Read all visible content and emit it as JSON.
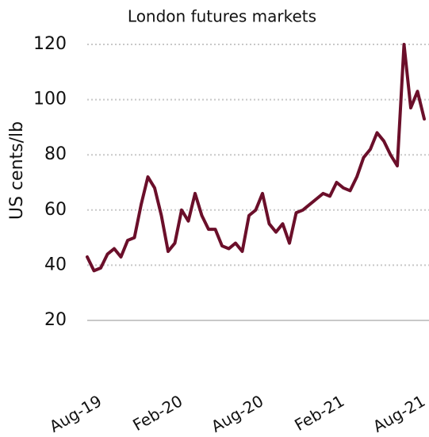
{
  "chart_data": {
    "type": "line",
    "title": "London futures markets",
    "y_label": "US cents/lb",
    "categories": [
      null,
      null,
      "Aug-19",
      null,
      null,
      null,
      null,
      null,
      null,
      null,
      null,
      null,
      null,
      null,
      "Feb-20",
      null,
      null,
      null,
      null,
      null,
      null,
      null,
      null,
      null,
      null,
      null,
      "Aug-20",
      null,
      null,
      null,
      null,
      null,
      null,
      null,
      null,
      null,
      null,
      null,
      "Feb-21",
      null,
      null,
      null,
      null,
      null,
      null,
      null,
      null,
      null,
      null,
      null,
      "Aug-21"
    ],
    "series": [
      {
        "name": "London futures",
        "color": "#6b0f2a",
        "values": [
          43,
          38,
          39,
          44,
          46,
          43,
          49,
          50,
          62,
          72,
          68,
          58,
          45,
          48,
          60,
          56,
          66,
          58,
          53,
          53,
          47,
          46,
          48,
          45,
          58,
          60,
          66,
          55,
          52,
          55,
          48,
          59,
          60,
          62,
          64,
          66,
          65,
          70,
          68,
          67,
          72,
          79,
          82,
          88,
          85,
          80,
          76,
          120,
          97,
          103,
          93
        ]
      }
    ],
    "ylim": [
      20,
      120
    ],
    "yticks": [
      20,
      40,
      60,
      80,
      100,
      120
    ],
    "grid": true
  }
}
